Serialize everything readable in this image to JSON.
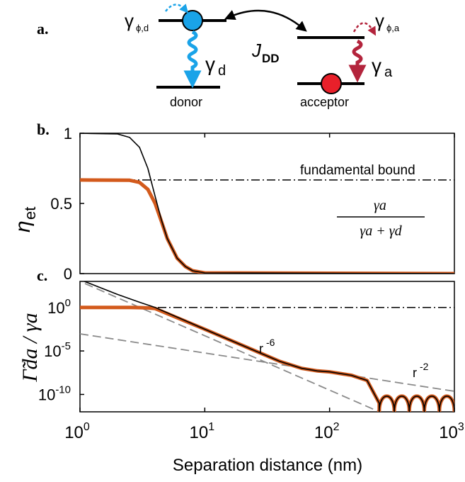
{
  "figure": {
    "panel_a": {
      "label": "a.",
      "gamma_phi_d": "γ",
      "gamma_phi_d_sub": "ϕ,d",
      "gamma_phi_a": "γ",
      "gamma_phi_a_sub": "ϕ,a",
      "gamma_d": "γ",
      "gamma_d_sub": "d",
      "gamma_a": "γ",
      "gamma_a_sub": "a",
      "coupling": "J",
      "coupling_sub": "DD",
      "donor": "donor",
      "acceptor": "acceptor",
      "colors": {
        "donor": "#1aa3e8",
        "acceptor": "#e8202a",
        "donor_arrow": "#1aa3e8",
        "acceptor_arrow": "#b3243c"
      }
    }
  },
  "chart_data": [
    {
      "type": "line",
      "panel_label": "b.",
      "ylabel": "η",
      "ylabel_sub": "et",
      "yticks": [
        "1",
        "0.5",
        "0"
      ],
      "ylim": [
        0,
        1
      ],
      "xscale": "log",
      "xlim": [
        1,
        1000
      ],
      "annotation": "fundamental bound",
      "formula": {
        "numerator": "γa",
        "denominator": "γa + γd"
      },
      "bound_value": 0.667,
      "series": [
        {
          "color": "#000000",
          "x": [
            1,
            2,
            2.5,
            3,
            3.5,
            4,
            4.5,
            5,
            6,
            7,
            8,
            10,
            1000
          ],
          "y": [
            1,
            0.995,
            0.97,
            0.9,
            0.75,
            0.55,
            0.38,
            0.25,
            0.11,
            0.05,
            0.02,
            0.005,
            0
          ]
        },
        {
          "color": "#d35a1c",
          "x": [
            1,
            2.5,
            3,
            3.5,
            4,
            4.5,
            5,
            6,
            7,
            8,
            10,
            1000
          ],
          "y": [
            0.667,
            0.665,
            0.65,
            0.6,
            0.5,
            0.37,
            0.25,
            0.11,
            0.05,
            0.02,
            0.005,
            0
          ]
        }
      ]
    },
    {
      "type": "line",
      "panel_label": "c.",
      "ylabel": "Γ̃da / γa",
      "yticks": [
        {
          "base": "10",
          "exp": "0",
          "value": 0
        },
        {
          "base": "10",
          "exp": "-5",
          "value": -5
        },
        {
          "base": "10",
          "exp": "-10",
          "value": -10
        }
      ],
      "ylim_log10": [
        -12,
        3
      ],
      "xscale": "log",
      "xlim": [
        1,
        1000
      ],
      "xticks": [
        {
          "base": "10",
          "exp": "0",
          "value": 1
        },
        {
          "base": "10",
          "exp": "1",
          "value": 10
        },
        {
          "base": "10",
          "exp": "2",
          "value": 100
        },
        {
          "base": "10",
          "exp": "3",
          "value": 1000
        }
      ],
      "xlabel": "Separation distance (nm)",
      "annotations": [
        {
          "text": "r",
          "sup": "-6"
        },
        {
          "text": "r",
          "sup": "-2"
        }
      ],
      "bound_log10": 0,
      "series": [
        {
          "color": "#000000",
          "x": [
            1,
            2,
            3,
            4,
            10,
            40,
            60,
            80,
            100,
            150,
            200,
            250,
            1000
          ],
          "y_log10": [
            3.2,
            1.5,
            0.6,
            0.0,
            -2.5,
            -6.2,
            -7.0,
            -7.3,
            -7.4,
            -7.8,
            -8.4,
            -11,
            -11
          ]
        },
        {
          "color": "#d35a1c",
          "x": [
            1,
            2.5,
            3,
            3.5,
            4,
            10,
            40,
            60,
            80,
            100,
            150,
            200,
            250,
            1000
          ],
          "y_log10": [
            0,
            0,
            -0.02,
            -0.05,
            -0.12,
            -2.5,
            -6.2,
            -7.0,
            -7.3,
            -7.4,
            -7.8,
            -8.4,
            -11,
            -11
          ]
        }
      ]
    }
  ]
}
